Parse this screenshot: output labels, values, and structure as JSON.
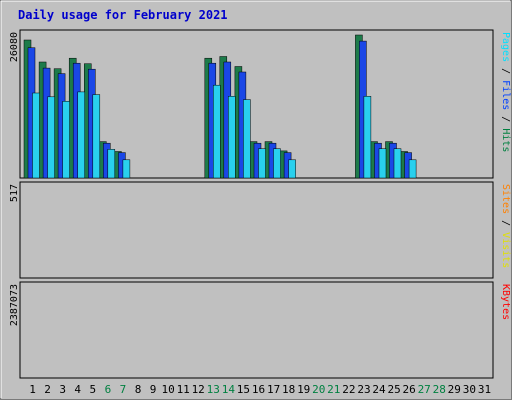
{
  "chart_data": {
    "type": "bar",
    "title": "Daily usage for February 2021",
    "days": [
      "1",
      "2",
      "3",
      "4",
      "5",
      "6",
      "7",
      "8",
      "9",
      "10",
      "11",
      "12",
      "13",
      "14",
      "15",
      "16",
      "17",
      "18",
      "19",
      "20",
      "21",
      "22",
      "23",
      "24",
      "25",
      "26",
      "27",
      "28",
      "29",
      "30",
      "31"
    ],
    "weekend_days": [
      "6",
      "7",
      "13",
      "14",
      "20",
      "21",
      "27",
      "28"
    ],
    "panels": [
      {
        "id": "top",
        "max_label": "26080",
        "ymax": 26080,
        "legend": [
          {
            "text": "Hits",
            "color": "#008040"
          },
          {
            "text": " / ",
            "color": "#000000"
          },
          {
            "text": "Files",
            "color": "#0040ff"
          },
          {
            "text": " / ",
            "color": "#000000"
          },
          {
            "text": "Pages",
            "color": "#00e0ff"
          }
        ],
        "series": [
          {
            "name": "Hits",
            "color": "#1d7b4a",
            "values": [
              25000,
              21000,
              19800,
              21700,
              20700,
              6600,
              4800,
              0,
              0,
              0,
              0,
              0,
              21700,
              22000,
              20200,
              6600,
              6600,
              4900,
              0,
              0,
              0,
              0,
              25900,
              6600,
              6600,
              4800,
              0,
              0,
              0,
              0,
              0
            ]
          },
          {
            "name": "Files",
            "color": "#1a47e6",
            "values": [
              23600,
              19900,
              18900,
              20800,
              19700,
              6300,
              4600,
              0,
              0,
              0,
              0,
              0,
              20800,
              21000,
              19200,
              6300,
              6300,
              4600,
              0,
              0,
              0,
              0,
              24800,
              6300,
              6300,
              4600,
              0,
              0,
              0,
              0,
              0
            ]
          },
          {
            "name": "Pages",
            "color": "#29d0ee",
            "values": [
              15400,
              14700,
              13900,
              15600,
              15100,
              5200,
              3300,
              0,
              0,
              0,
              0,
              0,
              16800,
              14800,
              14200,
              5300,
              5300,
              3300,
              0,
              0,
              0,
              0,
              14800,
              5300,
              5300,
              3300,
              0,
              0,
              0,
              0,
              0
            ]
          }
        ]
      },
      {
        "id": "middle",
        "max_label": "517",
        "ymax": 517,
        "legend": [
          {
            "text": "Visits",
            "color": "#e0e000"
          },
          {
            "text": " / ",
            "color": "#000000"
          },
          {
            "text": "Sites",
            "color": "#ff8000"
          }
        ],
        "series": [
          {
            "name": "Visits",
            "color": "#f0f018",
            "values": [
              0,
              0,
              0,
              0,
              0,
              0,
              0,
              0,
              0,
              0,
              0,
              0,
              0,
              0,
              0,
              0,
              0,
              0,
              0,
              0,
              0,
              0,
              0,
              0,
              0,
              0,
              0,
              0,
              0,
              0,
              0
            ]
          },
          {
            "name": "Sites",
            "color": "#f08a20",
            "values": [
              0,
              0,
              0,
              0,
              0,
              0,
              0,
              0,
              0,
              0,
              0,
              0,
              0,
              0,
              0,
              0,
              0,
              0,
              0,
              0,
              0,
              0,
              0,
              0,
              0,
              0,
              0,
              0,
              0,
              0,
              0
            ]
          }
        ]
      },
      {
        "id": "bottom",
        "max_label": "2387073",
        "ymax": 2387073,
        "legend": [
          {
            "text": "KBytes",
            "color": "#ff0000"
          }
        ],
        "series": [
          {
            "name": "KBytes",
            "color": "#e01818",
            "values": [
              0,
              0,
              0,
              0,
              0,
              0,
              0,
              0,
              0,
              0,
              0,
              0,
              0,
              0,
              0,
              0,
              0,
              0,
              0,
              0,
              0,
              0,
              0,
              0,
              0,
              0,
              0,
              0,
              0,
              0,
              0
            ]
          }
        ]
      }
    ]
  }
}
